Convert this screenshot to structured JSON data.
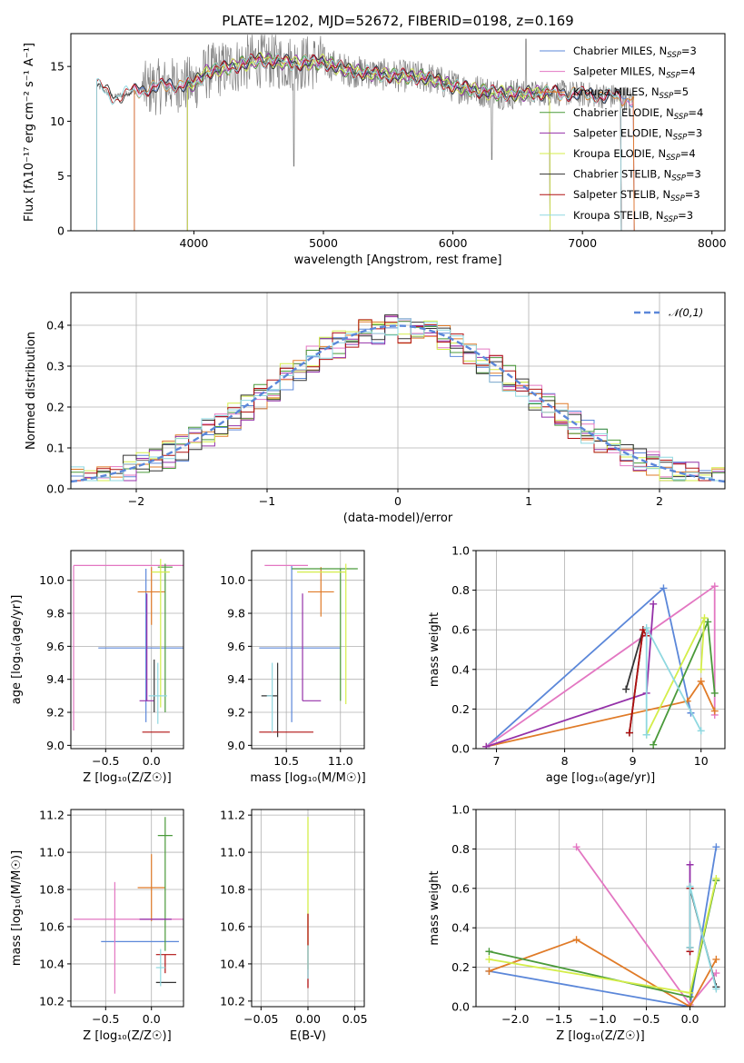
{
  "figure_title": "PLATE=1202, MJD=52672, FIBERID=0198, z=0.169",
  "models": [
    {
      "name": "Chabrier MILES",
      "n": "3",
      "color": "#5b87d9"
    },
    {
      "name": "Salpeter MILES",
      "n": "4",
      "color": "#e377c2"
    },
    {
      "name": "Kroupa MILES",
      "n": "5",
      "color": "#e07b28"
    },
    {
      "name": "Chabrier ELODIE",
      "n": "4",
      "color": "#4a9a3a"
    },
    {
      "name": "Salpeter ELODIE",
      "n": "3",
      "color": "#9430a8"
    },
    {
      "name": "Kroupa ELODIE",
      "n": "4",
      "color": "#d4ee4a"
    },
    {
      "name": "Chabrier STELIB",
      "n": "3",
      "color": "#333333"
    },
    {
      "name": "Salpeter STELIB",
      "n": "3",
      "color": "#b01010"
    },
    {
      "name": "Kroupa STELIB",
      "n": "3",
      "color": "#8fd8e0"
    }
  ],
  "chart_data": [
    {
      "id": "spectrum",
      "type": "line",
      "xlabel": "wavelength [Angstrom, rest frame]",
      "ylabel": "Flux [fλ10⁻¹⁷ erg cm⁻² s⁻¹ A⁻¹]",
      "xlim": [
        3050,
        8100
      ],
      "ylim": [
        0,
        18
      ],
      "xticks": [
        4000,
        5000,
        6000,
        7000,
        8000
      ],
      "yticks": [
        0,
        5,
        10,
        15
      ],
      "data_color": "#808080",
      "data_range": [
        3250,
        7400
      ],
      "continuum": [
        [
          3250,
          13.3
        ],
        [
          3380,
          12.2
        ],
        [
          3600,
          12.9
        ],
        [
          3800,
          13.3
        ],
        [
          4000,
          13.4
        ],
        [
          4100,
          14.5
        ],
        [
          4300,
          15.0
        ],
        [
          4500,
          15.6
        ],
        [
          4800,
          15.3
        ],
        [
          5000,
          15.4
        ],
        [
          5200,
          14.6
        ],
        [
          5500,
          14.2
        ],
        [
          5800,
          14.0
        ],
        [
          6000,
          13.2
        ],
        [
          6300,
          12.6
        ],
        [
          6500,
          12.5
        ],
        [
          6800,
          12.6
        ],
        [
          7200,
          12.3
        ],
        [
          7400,
          12.0
        ]
      ],
      "model_ranges": [
        [
          3540,
          7400
        ],
        [
          3540,
          7400
        ],
        [
          3540,
          7400
        ],
        [
          3950,
          6750
        ],
        [
          3950,
          6750
        ],
        [
          3950,
          6750
        ],
        [
          3250,
          7300
        ],
        [
          3250,
          7300
        ],
        [
          3250,
          7300
        ]
      ],
      "grid": false,
      "legend_position": "upper-right"
    },
    {
      "id": "residuals",
      "type": "histogram",
      "xlabel": "(data-model)/error",
      "ylabel": "Normed distribution",
      "xlim": [
        -2.5,
        2.5
      ],
      "ylim": [
        0,
        0.48
      ],
      "xticks": [
        -2,
        -1,
        0,
        1,
        2
      ],
      "yticks": [
        0.0,
        0.1,
        0.2,
        0.3,
        0.4
      ],
      "bin_width": 0.1,
      "reference_curve": "𝒩(0,1)",
      "reference_color": "#5b87d9",
      "grid": true,
      "legend_position": "upper-right"
    },
    {
      "id": "age-vs-Z",
      "type": "errorbar",
      "xlabel": "Z [log₁₀(Z/Z☉)]",
      "ylabel": "age  [log₁₀(age/yr)]",
      "xlim": [
        -0.88,
        0.35
      ],
      "ylim": [
        8.98,
        10.18
      ],
      "xticks": [
        -0.5,
        0.0
      ],
      "yticks": [
        9.0,
        9.2,
        9.4,
        9.6,
        9.8,
        10.0
      ],
      "points": [
        {
          "x": -0.06,
          "y": 9.59,
          "xerr": [
            0.52,
            0.45
          ],
          "yerr": [
            0.45,
            0.48
          ]
        },
        {
          "x": -0.85,
          "y": 10.09,
          "xerr": [
            0.0,
            1.2
          ],
          "yerr": [
            1.0,
            0.0
          ]
        },
        {
          "x": 0.0,
          "y": 9.93,
          "xerr": [
            0.15,
            0.15
          ],
          "yerr": [
            0.2,
            0.15
          ]
        },
        {
          "x": 0.15,
          "y": 10.08,
          "xerr": [
            0.08,
            0.08
          ],
          "yerr": [
            0.88,
            0.02
          ]
        },
        {
          "x": -0.05,
          "y": 9.27,
          "xerr": [
            0.08,
            0.08
          ],
          "yerr": [
            0.0,
            0.65
          ]
        },
        {
          "x": 0.1,
          "y": 10.05,
          "xerr": [
            0.1,
            0.1
          ],
          "yerr": [
            0.82,
            0.08
          ]
        },
        {
          "x": 0.03,
          "y": 9.3,
          "xerr": [
            0.0,
            0.0
          ],
          "yerr": [
            0.1,
            0.22
          ]
        },
        {
          "x": 0.05,
          "y": 9.08,
          "xerr": [
            0.15,
            0.15
          ],
          "yerr": [
            0.0,
            0.0
          ]
        },
        {
          "x": 0.07,
          "y": 9.3,
          "xerr": [
            0.1,
            0.1
          ],
          "yerr": [
            0.17,
            0.2
          ]
        }
      ],
      "grid": true
    },
    {
      "id": "age-vs-mass",
      "type": "errorbar",
      "xlabel": "mass [log₁₀(M/M☉)]",
      "ylabel": "",
      "xlim": [
        10.18,
        11.22
      ],
      "ylim": [
        8.98,
        10.18
      ],
      "xticks": [
        10.5,
        11.0
      ],
      "yticks": [
        9.0,
        9.2,
        9.4,
        9.6,
        9.8,
        10.0
      ],
      "points": [
        {
          "x": 10.55,
          "y": 9.59,
          "xerr": [
            0.3,
            0.45
          ],
          "yerr": [
            0.45,
            0.5
          ]
        },
        {
          "x": 10.3,
          "y": 10.09,
          "xerr": [
            0.0,
            0.4
          ],
          "yerr": [
            0.0,
            0.0
          ]
        },
        {
          "x": 10.82,
          "y": 9.93,
          "xerr": [
            0.12,
            0.12
          ],
          "yerr": [
            0.15,
            0.15
          ]
        },
        {
          "x": 11.0,
          "y": 10.07,
          "xerr": [
            0.45,
            0.16
          ],
          "yerr": [
            0.8,
            0.0
          ]
        },
        {
          "x": 10.65,
          "y": 9.27,
          "xerr": [
            0.0,
            0.17
          ],
          "yerr": [
            0.0,
            0.65
          ]
        },
        {
          "x": 11.05,
          "y": 10.05,
          "xerr": [
            0.45,
            0.0
          ],
          "yerr": [
            0.8,
            0.05
          ]
        },
        {
          "x": 10.42,
          "y": 9.3,
          "xerr": [
            0.15,
            0.0
          ],
          "yerr": [
            0.25,
            0.2
          ]
        },
        {
          "x": 10.45,
          "y": 9.08,
          "xerr": [
            0.2,
            0.3
          ],
          "yerr": [
            0.0,
            0.0
          ]
        },
        {
          "x": 10.37,
          "y": 9.3,
          "xerr": [
            0.05,
            0.0
          ],
          "yerr": [
            0.22,
            0.2
          ]
        }
      ],
      "grid": true
    },
    {
      "id": "mass-weight-vs-age",
      "type": "line",
      "xlabel": "age  [log₁₀(age/yr)]",
      "ylabel": "mass weight",
      "xlim": [
        6.7,
        10.35
      ],
      "ylim": [
        0.0,
        1.0
      ],
      "xticks": [
        7,
        8,
        9,
        10
      ],
      "yticks": [
        0.0,
        0.2,
        0.4,
        0.6,
        0.8,
        1.0
      ],
      "series": [
        {
          "x": [
            6.85,
            9.45,
            9.85
          ],
          "y": [
            0.01,
            0.81,
            0.18
          ]
        },
        {
          "x": [
            6.85,
            10.2,
            10.2
          ],
          "y": [
            0.01,
            0.82,
            0.17
          ]
        },
        {
          "x": [
            6.85,
            9.8,
            10.0,
            10.2
          ],
          "y": [
            0.01,
            0.24,
            0.34,
            0.19
          ]
        },
        {
          "x": [
            9.3,
            10.1,
            10.2
          ],
          "y": [
            0.02,
            0.64,
            0.28
          ]
        },
        {
          "x": [
            6.85,
            9.2,
            9.3
          ],
          "y": [
            0.01,
            0.28,
            0.73
          ]
        },
        {
          "x": [
            9.2,
            10.05,
            10.0
          ],
          "y": [
            0.07,
            0.66,
            0.4
          ]
        },
        {
          "x": [
            8.9,
            9.15,
            8.95
          ],
          "y": [
            0.3,
            0.6,
            0.08
          ]
        },
        {
          "x": [
            8.95,
            9.15,
            9.2
          ],
          "y": [
            0.08,
            0.6,
            0.57
          ]
        },
        {
          "x": [
            9.2,
            9.2,
            10.0
          ],
          "y": [
            0.07,
            0.61,
            0.09
          ]
        }
      ],
      "grid": true
    },
    {
      "id": "mass-vs-Z",
      "type": "errorbar",
      "xlabel": "Z [log₁₀(Z/Z☉)]",
      "ylabel": "mass [log₁₀(M/M☉)]",
      "xlim": [
        -0.88,
        0.35
      ],
      "ylim": [
        10.17,
        11.23
      ],
      "xticks": [
        -0.5,
        0.0
      ],
      "yticks": [
        10.2,
        10.4,
        10.6,
        10.8,
        11.0,
        11.2
      ],
      "points": [
        {
          "x": 0.0,
          "y": 10.52,
          "xerr": [
            0.55,
            0.3
          ],
          "yerr": [
            0.0,
            0.0
          ]
        },
        {
          "x": -0.4,
          "y": 10.64,
          "xerr": [
            0.45,
            0.75
          ],
          "yerr": [
            0.4,
            0.2
          ]
        },
        {
          "x": 0.0,
          "y": 10.81,
          "xerr": [
            0.15,
            0.15
          ],
          "yerr": [
            0.18,
            0.18
          ]
        },
        {
          "x": 0.15,
          "y": 11.09,
          "xerr": [
            0.08,
            0.08
          ],
          "yerr": [
            0.62,
            0.1
          ]
        },
        {
          "x": 0.02,
          "y": 10.64,
          "xerr": [
            0.15,
            0.2
          ],
          "yerr": [
            0.0,
            0.0
          ]
        },
        {
          "x": 0.12,
          "y": 11.05,
          "xerr": [
            0.0,
            0.0
          ],
          "yerr": [
            0.0,
            0.0
          ]
        },
        {
          "x": 0.15,
          "y": 10.3,
          "xerr": [
            0.1,
            0.12
          ],
          "yerr": [
            0.0,
            0.0
          ]
        },
        {
          "x": 0.15,
          "y": 10.45,
          "xerr": [
            0.1,
            0.12
          ],
          "yerr": [
            0.1,
            0.0
          ]
        },
        {
          "x": 0.1,
          "y": 10.38,
          "xerr": [
            0.05,
            0.05
          ],
          "yerr": [
            0.1,
            0.1
          ]
        }
      ],
      "grid": true
    },
    {
      "id": "mass-vs-ebv",
      "type": "errorbar",
      "xlabel": "E(B-V)",
      "ylabel": "",
      "xlim": [
        -0.06,
        0.06
      ],
      "ylim": [
        10.17,
        11.23
      ],
      "xticks": [
        -0.05,
        0.0,
        0.05
      ],
      "xticklabels": [
        "−0.05",
        "0.00",
        "0.05"
      ],
      "yticks": [
        10.2,
        10.4,
        10.6,
        10.8,
        11.0,
        11.2
      ],
      "segments": [
        {
          "x": 0.0,
          "y0": 10.37,
          "y1": 11.19
        },
        {
          "x": 0.0,
          "y0": 10.27,
          "y1": 10.67
        },
        {
          "x": 0.0,
          "y0": 10.32,
          "y1": 10.5
        }
      ],
      "grid": true
    },
    {
      "id": "mass-weight-vs-Z",
      "type": "line",
      "xlabel": "Z [log₁₀(Z/Z☉)]",
      "ylabel": "mass weight",
      "xlim": [
        -2.45,
        0.4
      ],
      "ylim": [
        0.0,
        1.0
      ],
      "xticks": [
        -2.0,
        -1.5,
        -1.0,
        -0.5,
        0.0
      ],
      "yticks": [
        0.0,
        0.2,
        0.4,
        0.6,
        0.8,
        1.0
      ],
      "series": [
        {
          "x": [
            -2.3,
            0.0,
            0.3
          ],
          "y": [
            0.18,
            0.0,
            0.81
          ]
        },
        {
          "x": [
            -1.3,
            0.0,
            0.3
          ],
          "y": [
            0.81,
            0.01,
            0.17
          ]
        },
        {
          "x": [
            -2.3,
            -1.3,
            0.0,
            0.3
          ],
          "y": [
            0.18,
            0.34,
            0.0,
            0.24
          ]
        },
        {
          "x": [
            -2.3,
            0.0,
            0.3
          ],
          "y": [
            0.28,
            0.05,
            0.64
          ]
        },
        {
          "x": [
            0.0,
            0.0
          ],
          "y": [
            0.28,
            0.72
          ]
        },
        {
          "x": [
            -2.3,
            0.0,
            0.3
          ],
          "y": [
            0.24,
            0.07,
            0.65
          ]
        },
        {
          "x": [
            0.0,
            0.0,
            0.3
          ],
          "y": [
            0.3,
            0.6,
            0.1
          ]
        },
        {
          "x": [
            0.0,
            0.0
          ],
          "y": [
            0.28,
            0.6
          ]
        },
        {
          "x": [
            0.0,
            0.0,
            0.3
          ],
          "y": [
            0.3,
            0.61,
            0.09
          ]
        }
      ],
      "grid": true
    }
  ]
}
